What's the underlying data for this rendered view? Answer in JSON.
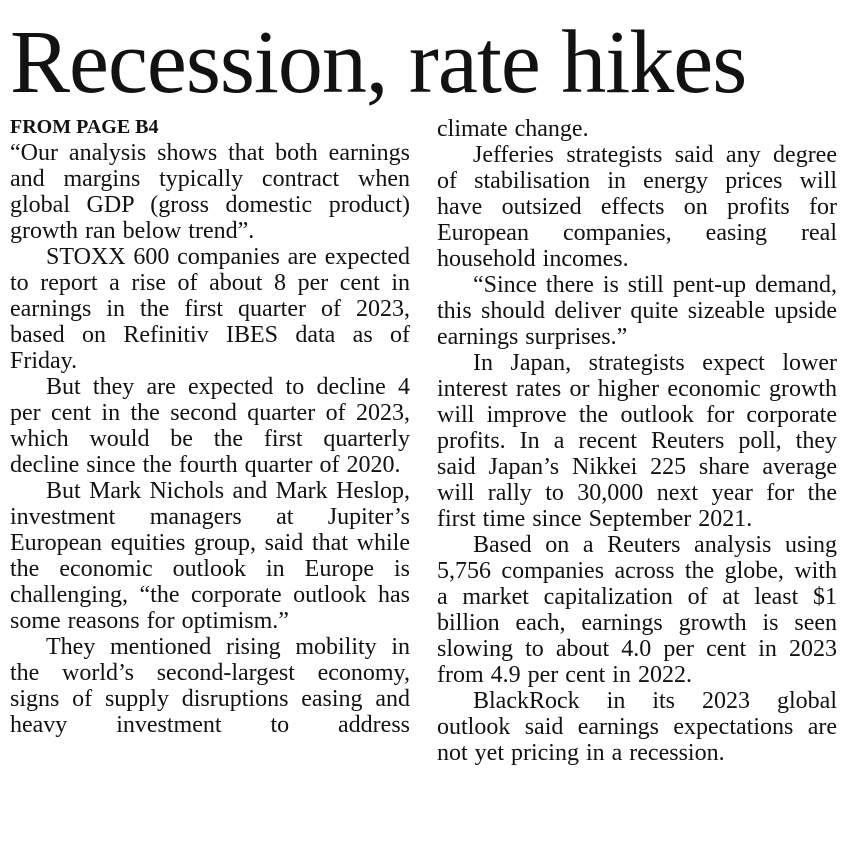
{
  "article": {
    "headline": "Recession, rate hikes",
    "kicker": "FROM PAGE B4",
    "left_column": {
      "paragraphs": [
        "“Our analysis shows that both earnings and margins typically contract when global GDP (gross domestic product) growth ran below trend”.",
        "STOXX 600 companies are expected to report a rise of about 8 per cent in earnings in the first quarter of 2023, based on Refinitiv IBES data as of Friday.",
        "But they are expected to decline 4 per cent in the second quarter of 2023, which would be the first quarterly decline since the fourth quarter of 2020.",
        "But Mark Nichols and Mark Heslop, investment managers at Jupiter’s European equities group, said that while the economic outlook in Europe is challenging, “the corporate outlook has some reasons for optimism.”",
        "They mentioned rising mobility in the world’s second-largest economy, signs of supply disruptions easing and heavy investment to address"
      ]
    },
    "right_column": {
      "paragraphs": [
        "climate change.",
        "Jefferies strategists said any degree of stabilisation in energy prices will have outsized effects on profits for European companies, easing real household incomes.",
        "“Since there is still pent-up demand, this should deliver quite sizeable upside earnings surprises.”",
        "In Japan, strategists expect lower interest rates or higher economic growth will improve the outlook for corporate profits. In a recent Reuters poll, they said Japan’s Nikkei 225 share average will rally to 30,000 next year for the first time since September 2021.",
        "Based on a Reuters analysis using 5,756 companies across the globe, with a market capitalization of at least $1 billion each, earnings growth is seen slowing to about 4.0 per cent in 2023 from 4.9 per cent in 2022.",
        "BlackRock in its 2023 global outlook said earnings expectations are not yet pricing in a recession."
      ]
    }
  },
  "colors": {
    "text": "#121212",
    "background": "#ffffff"
  }
}
